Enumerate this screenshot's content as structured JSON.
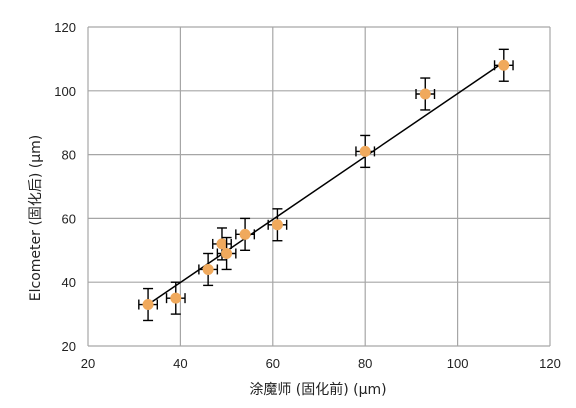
{
  "chart_data": {
    "type": "scatter",
    "title": "",
    "xlabel": "涂魔师 (固化前) (μm)",
    "ylabel": "Elcometer (固化后) (μm)",
    "xlim": [
      20,
      120
    ],
    "ylim": [
      20,
      120
    ],
    "xticks": [
      20,
      40,
      60,
      80,
      100,
      120
    ],
    "yticks": [
      20,
      40,
      60,
      80,
      100,
      120
    ],
    "grid": true,
    "legend": "none",
    "marker_color": "#f0a95c",
    "errorbar_color": "#000000",
    "fit_line_color": "#000000",
    "grid_color": "#a6a6a6",
    "fit_line": {
      "x": [
        33,
        110
      ],
      "y": [
        33,
        109
      ]
    },
    "points": [
      {
        "x": 33,
        "y": 33,
        "xerr": 2,
        "yerr": 5
      },
      {
        "x": 39,
        "y": 35,
        "xerr": 2,
        "yerr": 5
      },
      {
        "x": 46,
        "y": 44,
        "xerr": 2,
        "yerr": 5
      },
      {
        "x": 49,
        "y": 52,
        "xerr": 2,
        "yerr": 5
      },
      {
        "x": 50,
        "y": 49,
        "xerr": 2,
        "yerr": 5
      },
      {
        "x": 54,
        "y": 55,
        "xerr": 2,
        "yerr": 5
      },
      {
        "x": 61,
        "y": 58,
        "xerr": 2,
        "yerr": 5
      },
      {
        "x": 80,
        "y": 81,
        "xerr": 2,
        "yerr": 5
      },
      {
        "x": 93,
        "y": 99,
        "xerr": 2,
        "yerr": 5
      },
      {
        "x": 110,
        "y": 108,
        "xerr": 2,
        "yerr": 5
      }
    ]
  }
}
